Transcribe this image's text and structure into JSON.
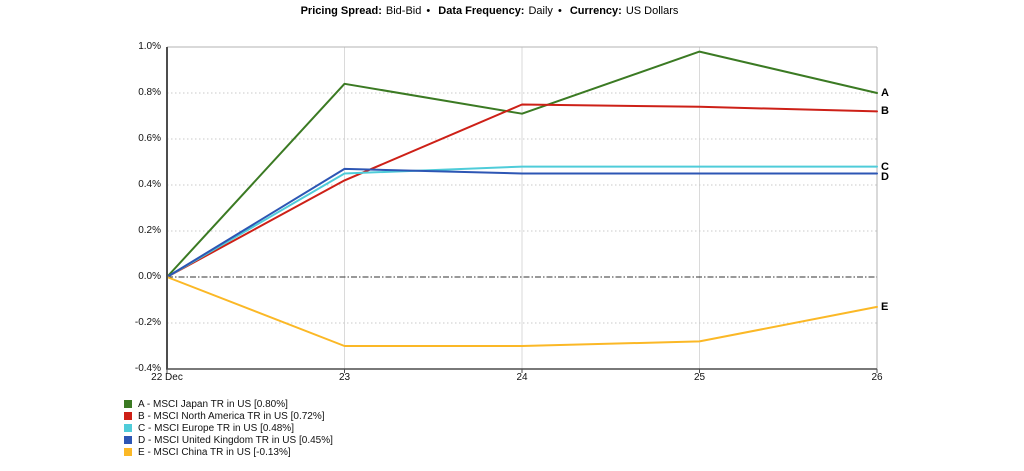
{
  "title": {
    "bullet": "•",
    "segments": [
      {
        "label": "Pricing Spread:",
        "value": "Bid-Bid"
      },
      {
        "label": "Data Frequency:",
        "value": "Daily"
      },
      {
        "label": "Currency:",
        "value": "US Dollars"
      }
    ]
  },
  "chart_data": {
    "type": "line",
    "title": "Pricing Spread: Bid-Bid • Data Frequency: Daily • Currency: US Dollars",
    "x_labels": [
      "22 Dec",
      "23",
      "24",
      "25",
      "26"
    ],
    "y_ticks": [
      1.0,
      0.8,
      0.6,
      0.4,
      0.2,
      0.0,
      -0.2,
      -0.4
    ],
    "y_tick_suffix": "%",
    "ylim": [
      -0.4,
      1.0
    ],
    "grid": true,
    "zero_line": "dash-dot",
    "legend_position": "bottom-left",
    "series": [
      {
        "id": "A",
        "name": "MSCI Japan TR in US",
        "final_value": "0.80%",
        "legend_label": "A - MSCI Japan TR in US [0.80%]",
        "color": "#3b7a23",
        "values": [
          0.0,
          0.84,
          0.71,
          0.98,
          0.8
        ]
      },
      {
        "id": "B",
        "name": "MSCI North America TR in US",
        "final_value": "0.72%",
        "legend_label": "B - MSCI North America TR in US [0.72%]",
        "color": "#cd2017",
        "values": [
          0.0,
          0.42,
          0.75,
          0.74,
          0.72
        ]
      },
      {
        "id": "C",
        "name": "MSCI Europe TR in US",
        "final_value": "0.48%",
        "legend_label": "C - MSCI Europe TR in US [0.48%]",
        "color": "#4fccd9",
        "values": [
          0.0,
          0.45,
          0.48,
          0.48,
          0.48
        ]
      },
      {
        "id": "D",
        "name": "MSCI United Kingdom TR in US",
        "final_value": "0.45%",
        "legend_label": "D - MSCI United Kingdom TR in US [0.45%]",
        "color": "#2d56b4",
        "values": [
          0.0,
          0.47,
          0.45,
          0.45,
          0.45
        ]
      },
      {
        "id": "E",
        "name": "MSCI China TR in US",
        "final_value": "-0.13%",
        "legend_label": "E - MSCI China TR in US [-0.13%]",
        "color": "#fbb826",
        "values": [
          0.0,
          -0.3,
          -0.3,
          -0.28,
          -0.13
        ]
      }
    ]
  }
}
